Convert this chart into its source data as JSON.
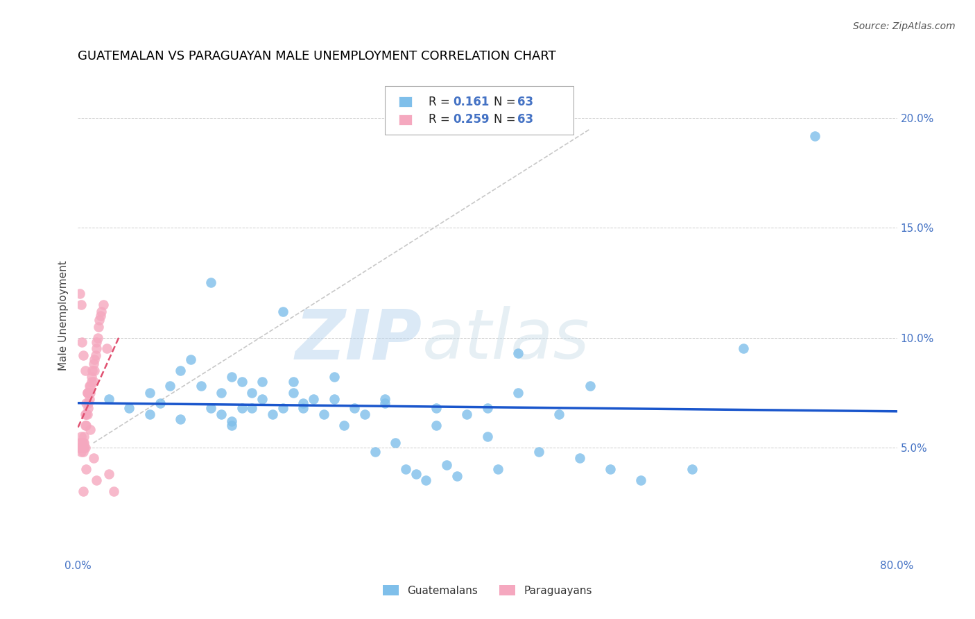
{
  "title": "GUATEMALAN VS PARAGUAYAN MALE UNEMPLOYMENT CORRELATION CHART",
  "source_text": "Source: ZipAtlas.com",
  "ylabel": "Male Unemployment",
  "watermark_zip": "ZIP",
  "watermark_atlas": "atlas",
  "legend_label_guatemalans": "Guatemalans",
  "legend_label_paraguayans": "Paraguayans",
  "legend_r1": "R = ",
  "legend_v1": "0.161",
  "legend_n1": "N = ",
  "legend_n1v": "63",
  "legend_r2": "R = ",
  "legend_v2": "0.259",
  "legend_n2": "N = ",
  "legend_n2v": "63",
  "xlim": [
    0.0,
    0.8
  ],
  "ylim": [
    0.0,
    0.22
  ],
  "yticks": [
    0.05,
    0.1,
    0.15,
    0.2
  ],
  "ytick_labels": [
    "5.0%",
    "10.0%",
    "15.0%",
    "20.0%"
  ],
  "xtick_labels": [
    "0.0%",
    "",
    "",
    "",
    "80.0%"
  ],
  "blue_color": "#7fbfea",
  "pink_color": "#f5a8bf",
  "trend_blue": "#1a56cc",
  "trend_pink": "#e05070",
  "diag_color": "#c8c8c8",
  "background_color": "#ffffff",
  "title_color": "#000000",
  "source_color": "#555555",
  "axis_label_color": "#444444",
  "tick_color": "#4472c4",
  "guatemalan_x": [
    0.03,
    0.05,
    0.07,
    0.07,
    0.08,
    0.09,
    0.1,
    0.1,
    0.11,
    0.12,
    0.13,
    0.13,
    0.14,
    0.14,
    0.15,
    0.15,
    0.16,
    0.16,
    0.17,
    0.17,
    0.18,
    0.18,
    0.19,
    0.2,
    0.21,
    0.21,
    0.22,
    0.23,
    0.24,
    0.25,
    0.26,
    0.27,
    0.28,
    0.29,
    0.3,
    0.31,
    0.32,
    0.33,
    0.34,
    0.35,
    0.36,
    0.37,
    0.38,
    0.4,
    0.41,
    0.43,
    0.45,
    0.47,
    0.49,
    0.52,
    0.55,
    0.6,
    0.65,
    0.72,
    0.2,
    0.22,
    0.3,
    0.35,
    0.43,
    0.5,
    0.15,
    0.25,
    0.4
  ],
  "guatemalan_y": [
    0.072,
    0.068,
    0.075,
    0.065,
    0.07,
    0.078,
    0.085,
    0.063,
    0.09,
    0.078,
    0.068,
    0.125,
    0.075,
    0.065,
    0.082,
    0.062,
    0.068,
    0.08,
    0.068,
    0.075,
    0.072,
    0.08,
    0.065,
    0.068,
    0.075,
    0.08,
    0.068,
    0.072,
    0.065,
    0.072,
    0.06,
    0.068,
    0.065,
    0.048,
    0.07,
    0.052,
    0.04,
    0.038,
    0.035,
    0.06,
    0.042,
    0.037,
    0.065,
    0.068,
    0.04,
    0.075,
    0.048,
    0.065,
    0.045,
    0.04,
    0.035,
    0.04,
    0.095,
    0.192,
    0.112,
    0.07,
    0.072,
    0.068,
    0.093,
    0.078,
    0.06,
    0.082,
    0.055
  ],
  "paraguayan_x": [
    0.001,
    0.002,
    0.002,
    0.003,
    0.003,
    0.003,
    0.004,
    0.004,
    0.004,
    0.004,
    0.005,
    0.005,
    0.005,
    0.005,
    0.006,
    0.006,
    0.006,
    0.006,
    0.007,
    0.007,
    0.007,
    0.008,
    0.008,
    0.008,
    0.009,
    0.009,
    0.01,
    0.01,
    0.01,
    0.011,
    0.011,
    0.012,
    0.012,
    0.013,
    0.013,
    0.014,
    0.015,
    0.015,
    0.016,
    0.016,
    0.017,
    0.018,
    0.018,
    0.019,
    0.02,
    0.021,
    0.022,
    0.023,
    0.025,
    0.028,
    0.03,
    0.035,
    0.002,
    0.003,
    0.004,
    0.005,
    0.007,
    0.009,
    0.012,
    0.015,
    0.005,
    0.008,
    0.018
  ],
  "paraguayan_y": [
    0.05,
    0.05,
    0.052,
    0.05,
    0.048,
    0.055,
    0.05,
    0.05,
    0.05,
    0.052,
    0.048,
    0.05,
    0.05,
    0.052,
    0.05,
    0.05,
    0.052,
    0.055,
    0.05,
    0.06,
    0.065,
    0.06,
    0.065,
    0.07,
    0.065,
    0.075,
    0.068,
    0.07,
    0.075,
    0.072,
    0.078,
    0.075,
    0.078,
    0.08,
    0.082,
    0.085,
    0.08,
    0.088,
    0.085,
    0.09,
    0.092,
    0.095,
    0.098,
    0.1,
    0.105,
    0.108,
    0.11,
    0.112,
    0.115,
    0.095,
    0.038,
    0.03,
    0.12,
    0.115,
    0.098,
    0.092,
    0.085,
    0.075,
    0.058,
    0.045,
    0.03,
    0.04,
    0.035
  ]
}
